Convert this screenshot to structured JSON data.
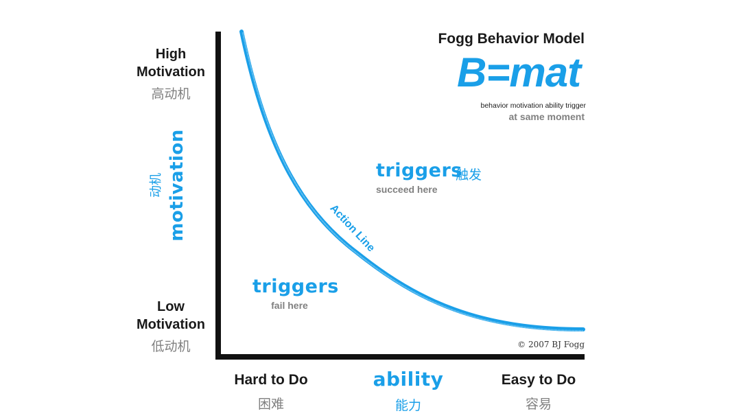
{
  "axis": {
    "high_label": "High Motivation",
    "high_label_cn": "高动机",
    "low_label": "Low Motivation",
    "low_label_cn": "低动机",
    "y_label": "motivation",
    "y_label_cn": "动机",
    "left_label": "Hard to Do",
    "left_label_cn": "困难",
    "x_label": "ability",
    "x_label_cn": "能力",
    "right_label": "Easy to Do",
    "right_label_cn": "容易"
  },
  "model": {
    "title": "Fogg Behavior Model",
    "formula": "B=mat",
    "legend": "behavior   motivation   ability   trigger",
    "note": "at same moment"
  },
  "regions": {
    "succeed_title": "triggers",
    "succeed_title_cn": "触发",
    "succeed_text": "succeed here",
    "fail_title": "triggers",
    "fail_text": "fail here"
  },
  "curve": {
    "label": "Action Line",
    "color": "#1a9fe8"
  },
  "colors": {
    "accent": "#1a9fe8",
    "axis": "#111111",
    "muted": "#808080"
  },
  "copyright": "© 2007 BJ Fogg"
}
